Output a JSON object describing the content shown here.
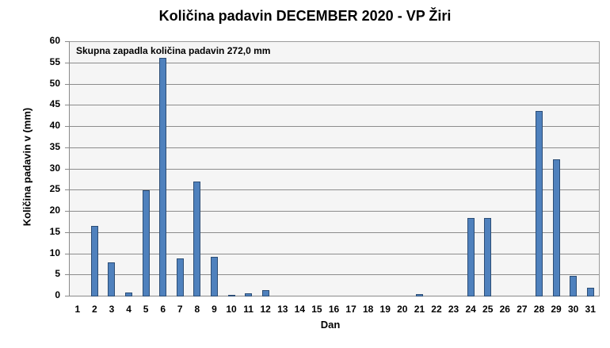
{
  "chart_data": {
    "type": "bar",
    "title": "Količina padavin DECEMBER 2020 - VP Žiri",
    "xlabel": "Dan",
    "ylabel": "Količina padavin v  (mm)",
    "annotation": "Skupna zapadla količina padavin 272,0 mm",
    "ylim": [
      0,
      60
    ],
    "yticks": [
      0,
      5,
      10,
      15,
      20,
      25,
      30,
      35,
      40,
      45,
      50,
      55,
      60
    ],
    "grid": true,
    "legend": null,
    "bar_color": "#4f81bd",
    "categories": [
      "1",
      "2",
      "3",
      "4",
      "5",
      "6",
      "7",
      "8",
      "9",
      "10",
      "11",
      "12",
      "13",
      "14",
      "15",
      "16",
      "17",
      "18",
      "19",
      "20",
      "21",
      "22",
      "23",
      "24",
      "25",
      "26",
      "27",
      "28",
      "29",
      "30",
      "31"
    ],
    "values": [
      0,
      16.4,
      7.8,
      0.7,
      24.8,
      56.0,
      8.8,
      27.0,
      9.2,
      0.2,
      0.5,
      1.3,
      0,
      0,
      0,
      0,
      0,
      0,
      0,
      0,
      0.4,
      0,
      0,
      18.4,
      18.4,
      0,
      0,
      43.5,
      32.1,
      4.7,
      1.8
    ]
  }
}
